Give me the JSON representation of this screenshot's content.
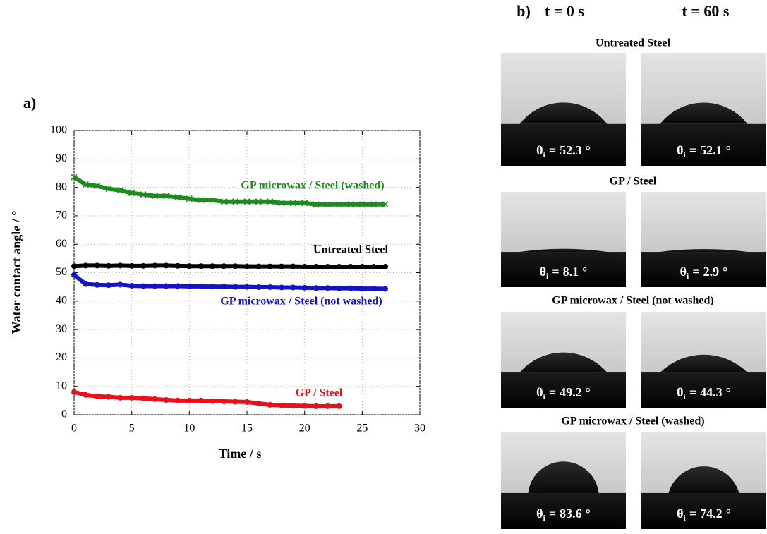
{
  "chart_data": {
    "type": "scatter",
    "panel_label": "a)",
    "x_label": "Time / s",
    "y_label": "Water contact angle / °",
    "x": [
      0,
      1,
      2,
      3,
      4,
      5,
      6,
      7,
      8,
      9,
      10,
      11,
      12,
      13,
      14,
      15,
      16,
      17,
      18,
      19,
      20,
      21,
      22,
      23,
      24,
      25,
      26,
      27
    ],
    "xlim": [
      0,
      30
    ],
    "xticks": [
      0,
      5,
      10,
      15,
      20,
      25,
      30
    ],
    "ylim": [
      0,
      100
    ],
    "yticks": [
      0,
      10,
      20,
      30,
      40,
      50,
      60,
      70,
      80,
      90,
      100
    ],
    "grid": true,
    "series": [
      {
        "name": "GP microwax / Steel (washed)",
        "color": "#1f8a1f",
        "marker": "x",
        "values": [
          83.6,
          81,
          80.5,
          79.5,
          79,
          78,
          77.5,
          77,
          77,
          76.5,
          76,
          75.5,
          75.5,
          75,
          75,
          75,
          75,
          75,
          74.5,
          74.5,
          74.5,
          74,
          74,
          74,
          74,
          74,
          74,
          74
        ]
      },
      {
        "name": "Untreated Steel",
        "color": "#000000",
        "marker": "o",
        "values": [
          52.3,
          52.5,
          52.5,
          52.4,
          52.5,
          52.4,
          52.4,
          52.5,
          52.5,
          52.4,
          52.3,
          52.3,
          52.3,
          52.3,
          52.3,
          52.2,
          52.2,
          52.2,
          52.2,
          52.2,
          52.1,
          52.1,
          52.1,
          52.1,
          52.1,
          52.1,
          52.1,
          52.1
        ]
      },
      {
        "name": "GP microwax / Steel (not washed)",
        "color": "#1414c0",
        "marker": "o",
        "values": [
          49.2,
          46,
          45.7,
          45.6,
          45.8,
          45.4,
          45.3,
          45.3,
          45.3,
          45.3,
          45.2,
          45.2,
          45.1,
          45.1,
          45,
          45,
          44.9,
          44.9,
          44.8,
          44.8,
          44.7,
          44.6,
          44.6,
          44.5,
          44.5,
          44.4,
          44.4,
          44.3
        ]
      },
      {
        "name": "GP / Steel",
        "color": "#e8101a",
        "marker": "o",
        "values": [
          8,
          7,
          6.5,
          6.3,
          6,
          6,
          5.8,
          5.5,
          5.2,
          5,
          5,
          5,
          4.8,
          4.7,
          4.6,
          4.5,
          4,
          3.5,
          3.3,
          3.2,
          3.1,
          3,
          3,
          3,
          null,
          null,
          null,
          null
        ]
      }
    ]
  },
  "panel_b": {
    "panel_label": "b)",
    "columns": [
      "t = 0 s",
      "t = 60 s"
    ],
    "angle_symbol": "θ",
    "angle_subscript": "i",
    "equals": "=",
    "unit": "°",
    "groups": [
      {
        "title": "Untreated Steel",
        "angles": [
          52.3,
          52.1
        ]
      },
      {
        "title": "GP / Steel",
        "angles": [
          8.1,
          2.9
        ]
      },
      {
        "title": "GP microwax / Steel (not washed)",
        "angles": [
          49.2,
          44.3
        ]
      },
      {
        "title": "GP microwax / Steel (washed)",
        "angles": [
          83.6,
          74.2
        ]
      }
    ]
  }
}
